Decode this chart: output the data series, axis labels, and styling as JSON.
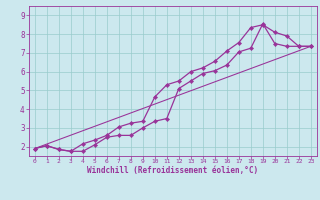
{
  "xlabel": "Windchill (Refroidissement éolien,°C)",
  "bg_color": "#cce8ee",
  "line_color": "#993399",
  "grid_color": "#99cccc",
  "xlim": [
    -0.5,
    23.5
  ],
  "ylim": [
    1.5,
    9.5
  ],
  "xticks": [
    0,
    1,
    2,
    3,
    4,
    5,
    6,
    7,
    8,
    9,
    10,
    11,
    12,
    13,
    14,
    15,
    16,
    17,
    18,
    19,
    20,
    21,
    22,
    23
  ],
  "yticks": [
    2,
    3,
    4,
    5,
    6,
    7,
    8,
    9
  ],
  "line1_x": [
    0,
    1,
    2,
    3,
    4,
    5,
    6,
    7,
    8,
    9,
    10,
    11,
    12,
    13,
    14,
    15,
    16,
    17,
    18,
    19,
    20,
    21,
    22,
    23
  ],
  "line1_y": [
    1.9,
    2.05,
    1.85,
    1.75,
    1.75,
    2.1,
    2.5,
    2.6,
    2.6,
    3.0,
    3.35,
    3.5,
    5.1,
    5.5,
    5.9,
    6.05,
    6.35,
    7.05,
    7.25,
    8.55,
    7.5,
    7.35,
    7.35,
    7.35
  ],
  "line2_x": [
    0,
    1,
    2,
    3,
    4,
    5,
    6,
    7,
    8,
    9,
    10,
    11,
    12,
    13,
    14,
    15,
    16,
    17,
    18,
    19,
    20,
    21,
    22,
    23
  ],
  "line2_y": [
    1.9,
    2.05,
    1.85,
    1.75,
    2.15,
    2.35,
    2.6,
    3.05,
    3.25,
    3.35,
    4.65,
    5.3,
    5.5,
    6.0,
    6.2,
    6.55,
    7.1,
    7.55,
    8.35,
    8.5,
    8.1,
    7.9,
    7.35,
    7.35
  ],
  "line3_x": [
    0,
    23
  ],
  "line3_y": [
    1.9,
    7.35
  ],
  "marker": "D",
  "markersize": 2.2,
  "linewidth": 0.9
}
